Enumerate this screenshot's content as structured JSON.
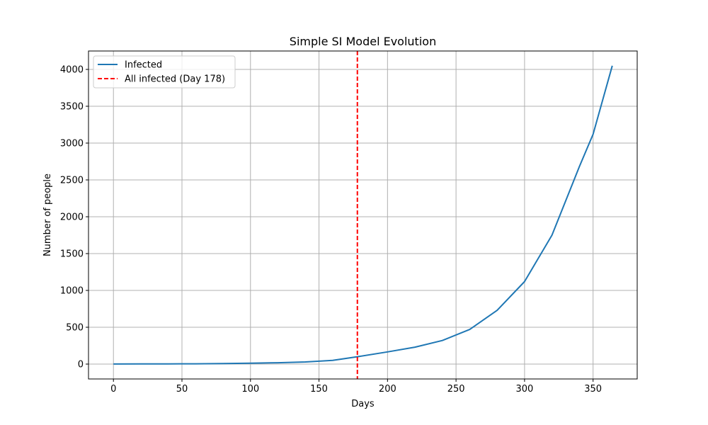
{
  "chart_data": {
    "type": "line",
    "title": "Simple SI Model Evolution",
    "xlabel": "Days",
    "ylabel": "Number of people",
    "xlim": [
      -18.2,
      382.2
    ],
    "ylim": [
      -202,
      4250
    ],
    "xticks": [
      0,
      50,
      100,
      150,
      200,
      250,
      300,
      350
    ],
    "yticks": [
      0,
      500,
      1000,
      1500,
      2000,
      2500,
      3000,
      3500,
      4000
    ],
    "grid": true,
    "legend_position": "top-left",
    "series": [
      {
        "name": "Infected",
        "color": "#1f77b4",
        "style": "solid",
        "x": [
          0,
          20,
          40,
          60,
          80,
          100,
          120,
          140,
          160,
          178,
          200,
          220,
          240,
          260,
          280,
          300,
          320,
          340,
          350,
          364
        ],
        "y": [
          1,
          1.6,
          2.6,
          4.2,
          6.8,
          11,
          18,
          29,
          50,
          100,
          165,
          230,
          320,
          470,
          730,
          1120,
          1750,
          2680,
          3120,
          4050
        ]
      }
    ],
    "annotations": [
      {
        "type": "vline",
        "x": 178,
        "label": "All infected (Day 178)",
        "color": "#ff0000",
        "style": "dashed"
      }
    ]
  }
}
